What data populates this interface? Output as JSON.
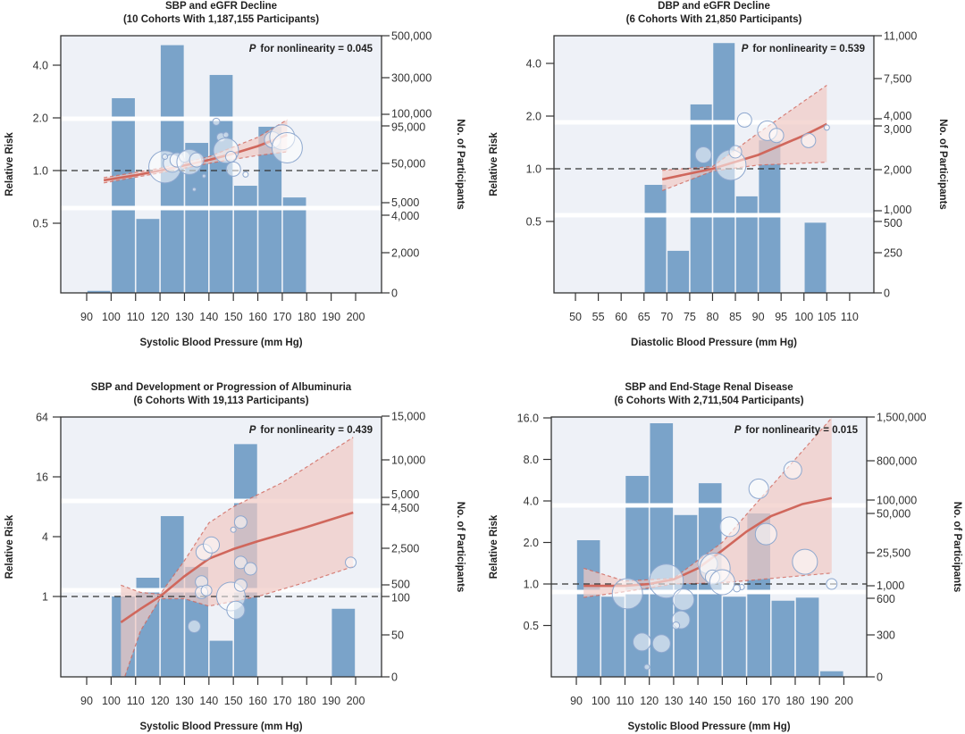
{
  "chart_data": [
    {
      "type": "bar+line+scatter",
      "title": "SBP and eGFR Decline",
      "subtitle": "(10 Cohorts With 1,187,155 Participants)",
      "p_label": "P",
      "p_text": "for nonlinearity = 0.045",
      "xlabel": "Systolic Blood Pressure (mm Hg)",
      "ylabel": "Relative Risk",
      "y2label": "No. of Participants",
      "x_ticks": [
        90,
        100,
        110,
        120,
        130,
        140,
        150,
        160,
        170,
        180,
        190,
        200
      ],
      "y_ticks": [
        {
          "v": 4.0,
          "label": "4.0"
        },
        {
          "v": 2.0,
          "label": "2.0"
        },
        {
          "v": 1.0,
          "label": "1.0"
        },
        {
          "v": 0.5,
          "label": "0.5"
        }
      ],
      "y_scale": "log",
      "y2_ticks": [
        {
          "v": 500000,
          "label": "500,000"
        },
        {
          "v": 300000,
          "label": "300,000"
        },
        {
          "v": 100000,
          "label": "100,000"
        },
        {
          "v": 95000,
          "label": "95,000"
        },
        {
          "v": 50000,
          "label": "50,000"
        },
        {
          "v": 5000,
          "label": "5,000"
        },
        {
          "v": 4000,
          "label": "4,000"
        },
        {
          "v": 2000,
          "label": "2,000"
        },
        {
          "v": 0,
          "label": "0"
        }
      ],
      "bars": [
        {
          "x0": 90,
          "x1": 100,
          "n": 100
        },
        {
          "x0": 100,
          "x1": 110,
          "n": 188000
        },
        {
          "x0": 110,
          "x1": 120,
          "n": 3800
        },
        {
          "x0": 120,
          "x1": 130,
          "n": 455000
        },
        {
          "x0": 130,
          "x1": 140,
          "n": 74600
        },
        {
          "x0": 140,
          "x1": 150,
          "n": 313000
        },
        {
          "x0": 150,
          "x1": 160,
          "n": 24400
        },
        {
          "x0": 160,
          "x1": 170,
          "n": 94000
        },
        {
          "x0": 170,
          "x1": 180,
          "n": 11000
        }
      ],
      "curve": [
        [
          97,
          0.88
        ],
        [
          110,
          0.94
        ],
        [
          120,
          1.0
        ],
        [
          130,
          1.07
        ],
        [
          140,
          1.15
        ],
        [
          150,
          1.25
        ],
        [
          160,
          1.38
        ],
        [
          172,
          1.6
        ]
      ],
      "ci_upper": [
        [
          97,
          0.91
        ],
        [
          120,
          1.03
        ],
        [
          140,
          1.2
        ],
        [
          160,
          1.55
        ],
        [
          172,
          1.95
        ]
      ],
      "ci_lower": [
        [
          97,
          0.85
        ],
        [
          120,
          0.97
        ],
        [
          140,
          1.1
        ],
        [
          160,
          1.22
        ],
        [
          172,
          1.28
        ]
      ],
      "cohort_points": [
        [
          122,
          1.05,
          18
        ],
        [
          125,
          1.1,
          10
        ],
        [
          127,
          1.15,
          8
        ],
        [
          130,
          1.2,
          6
        ],
        [
          132,
          1.12,
          14
        ],
        [
          135,
          1.15,
          8
        ],
        [
          138,
          0.93,
          2
        ],
        [
          134,
          0.78,
          2
        ],
        [
          143,
          1.9,
          4
        ],
        [
          145,
          1.55,
          5
        ],
        [
          147,
          1.3,
          14
        ],
        [
          149,
          1.2,
          6
        ],
        [
          150,
          1.02,
          8
        ],
        [
          155,
          0.95,
          3
        ],
        [
          166,
          1.5,
          9
        ],
        [
          170,
          1.55,
          14
        ],
        [
          172,
          1.35,
          17
        ],
        [
          147,
          1.6,
          3
        ],
        [
          122,
          1.2,
          3
        ]
      ]
    },
    {
      "type": "bar+line+scatter",
      "title": "DBP and eGFR Decline",
      "subtitle": "(6 Cohorts With 21,850 Participants)",
      "p_label": "P",
      "p_text": "for nonlinearity = 0.539",
      "xlabel": "Diastolic Blood Pressure (mm Hg)",
      "ylabel": "Relative Risk",
      "y2label": "No. of Participants",
      "x_ticks": [
        50,
        55,
        60,
        65,
        70,
        75,
        80,
        85,
        90,
        95,
        100,
        105,
        110
      ],
      "y_ticks": [
        {
          "v": 4.0,
          "label": "4.0"
        },
        {
          "v": 2.0,
          "label": "2.0"
        },
        {
          "v": 1.0,
          "label": "1.0"
        },
        {
          "v": 0.5,
          "label": "0.5"
        }
      ],
      "y_scale": "log",
      "y2_ticks": [
        {
          "v": 11000,
          "label": "11,000"
        },
        {
          "v": 7500,
          "label": "7,500"
        },
        {
          "v": 4000,
          "label": "4,000"
        },
        {
          "v": 3000,
          "label": "3,000"
        },
        {
          "v": 2000,
          "label": "2,000"
        },
        {
          "v": 1000,
          "label": "1,000"
        },
        {
          "v": 500,
          "label": "500"
        },
        {
          "v": 250,
          "label": "250"
        },
        {
          "v": 0,
          "label": "0"
        }
      ],
      "bars": [
        {
          "x0": 65,
          "x1": 70,
          "n": 1630
        },
        {
          "x0": 70,
          "x1": 75,
          "n": 265
        },
        {
          "x0": 75,
          "x1": 80,
          "n": 5250
        },
        {
          "x0": 80,
          "x1": 85,
          "n": 10400
        },
        {
          "x0": 85,
          "x1": 90,
          "n": 1350
        },
        {
          "x0": 90,
          "x1": 95,
          "n": 2670
        },
        {
          "x0": 100,
          "x1": 105,
          "n": 490
        }
      ],
      "curve": [
        [
          69,
          0.87
        ],
        [
          80,
          1.0
        ],
        [
          90,
          1.2
        ],
        [
          100,
          1.55
        ],
        [
          105,
          1.8
        ]
      ],
      "ci_upper": [
        [
          69,
          0.98
        ],
        [
          80,
          1.03
        ],
        [
          90,
          1.6
        ],
        [
          105,
          3.0
        ]
      ],
      "ci_lower": [
        [
          69,
          0.75
        ],
        [
          80,
          0.97
        ],
        [
          90,
          1.05
        ],
        [
          105,
          1.09
        ]
      ],
      "cohort_points": [
        [
          78,
          1.2,
          9
        ],
        [
          84,
          1.05,
          17
        ],
        [
          85,
          1.25,
          7
        ],
        [
          87,
          1.9,
          8
        ],
        [
          92,
          1.65,
          11
        ],
        [
          94,
          1.55,
          8
        ],
        [
          101,
          1.45,
          8
        ],
        [
          105,
          1.72,
          3
        ]
      ]
    },
    {
      "type": "bar+line+scatter",
      "title": "SBP and Development or Progression of Albuminuria",
      "subtitle": "(6 Cohorts With 19,113 Participants)",
      "p_label": "P",
      "p_text": "for nonlinearity = 0.439",
      "xlabel": "Systolic Blood Pressure (mm Hg)",
      "ylabel": "Relative Risk",
      "y2label": "No. of Participants",
      "x_ticks": [
        90,
        100,
        110,
        120,
        130,
        140,
        150,
        160,
        170,
        180,
        190,
        200
      ],
      "y_ticks": [
        {
          "v": 64,
          "label": "64"
        },
        {
          "v": 16,
          "label": "16"
        },
        {
          "v": 4,
          "label": "4"
        },
        {
          "v": 1,
          "label": "1"
        }
      ],
      "y_scale": "log",
      "y2_ticks": [
        {
          "v": 15000,
          "label": "15,000"
        },
        {
          "v": 10000,
          "label": "10,000"
        },
        {
          "v": 5000,
          "label": "5,000"
        },
        {
          "v": 4500,
          "label": "4,500"
        },
        {
          "v": 2500,
          "label": "2,500"
        },
        {
          "v": 500,
          "label": "500"
        },
        {
          "v": 100,
          "label": "100"
        },
        {
          "v": 50,
          "label": "50"
        },
        {
          "v": 0,
          "label": "0"
        }
      ],
      "bars": [
        {
          "x0": 100,
          "x1": 110,
          "n": 100
        },
        {
          "x0": 110,
          "x1": 120,
          "n": 890
        },
        {
          "x0": 120,
          "x1": 130,
          "n": 3970
        },
        {
          "x0": 130,
          "x1": 140,
          "n": 1480
        },
        {
          "x0": 140,
          "x1": 150,
          "n": 43
        },
        {
          "x0": 150,
          "x1": 160,
          "n": 11800
        },
        {
          "x0": 190,
          "x1": 200,
          "n": 84
        }
      ],
      "curve": [
        [
          104,
          0.55
        ],
        [
          112,
          0.75
        ],
        [
          120,
          1.0
        ],
        [
          130,
          1.6
        ],
        [
          140,
          2.4
        ],
        [
          150,
          3.0
        ],
        [
          160,
          3.6
        ],
        [
          180,
          5.0
        ],
        [
          199,
          7.0
        ]
      ],
      "ci_upper": [
        [
          104,
          1.3
        ],
        [
          112,
          1.1
        ],
        [
          120,
          1.05
        ],
        [
          130,
          2.3
        ],
        [
          140,
          5.5
        ],
        [
          150,
          8.0
        ],
        [
          170,
          14
        ],
        [
          199,
          40
        ]
      ],
      "ci_lower": [
        [
          104,
          0.12
        ],
        [
          112,
          0.45
        ],
        [
          120,
          0.95
        ],
        [
          130,
          0.95
        ],
        [
          140,
          0.8
        ],
        [
          160,
          1.0
        ],
        [
          180,
          1.4
        ],
        [
          199,
          2.0
        ]
      ],
      "cohort_points": [
        [
          134,
          0.5,
          7
        ],
        [
          137,
          1.4,
          7
        ],
        [
          138,
          2.8,
          9
        ],
        [
          141,
          3.3,
          9
        ],
        [
          137,
          1.1,
          7
        ],
        [
          139,
          1.15,
          6
        ],
        [
          149,
          1.0,
          16
        ],
        [
          151,
          0.73,
          10
        ],
        [
          153,
          5.6,
          7
        ],
        [
          153,
          2.2,
          7
        ],
        [
          153,
          1.3,
          7
        ],
        [
          157,
          1.9,
          7
        ],
        [
          150,
          4.7,
          3
        ],
        [
          198,
          2.2,
          6
        ]
      ]
    },
    {
      "type": "bar+line+scatter",
      "title": "SBP and End-Stage Renal Disease",
      "subtitle": "(6 Cohorts With 2,711,504 Participants)",
      "p_label": "P",
      "p_text": "for nonlinearity = 0.015",
      "xlabel": "Systolic Blood Pressure (mm Hg)",
      "ylabel": "Relative Risk",
      "y2label": "No. of Participants",
      "x_ticks": [
        90,
        100,
        110,
        120,
        130,
        140,
        150,
        160,
        170,
        180,
        190,
        200
      ],
      "y_ticks": [
        {
          "v": 16,
          "label": "16.0"
        },
        {
          "v": 8,
          "label": "8.0"
        },
        {
          "v": 4,
          "label": "4.0"
        },
        {
          "v": 2,
          "label": "2.0"
        },
        {
          "v": 1,
          "label": "1.0"
        },
        {
          "v": 0.5,
          "label": "0.5"
        }
      ],
      "y_scale": "log",
      "y2_ticks": [
        {
          "v": 1500000,
          "label": "1,500,000"
        },
        {
          "v": 800000,
          "label": "800,000"
        },
        {
          "v": 100000,
          "label": "100,000"
        },
        {
          "v": 50000,
          "label": "50,000"
        },
        {
          "v": 25500,
          "label": "25,500"
        },
        {
          "v": 1000,
          "label": "1,000"
        },
        {
          "v": 600,
          "label": "600"
        },
        {
          "v": 300,
          "label": "300"
        },
        {
          "v": 0,
          "label": "0"
        }
      ],
      "bars": [
        {
          "x0": 90,
          "x1": 100,
          "n": 33300
        },
        {
          "x0": 100,
          "x1": 110,
          "n": 650
        },
        {
          "x0": 110,
          "x1": 120,
          "n": 530000
        },
        {
          "x0": 120,
          "x1": 130,
          "n": 1400000
        },
        {
          "x0": 130,
          "x1": 140,
          "n": 49000
        },
        {
          "x0": 140,
          "x1": 150,
          "n": 400000
        },
        {
          "x0": 150,
          "x1": 160,
          "n": 650
        },
        {
          "x0": 160,
          "x1": 170,
          "n": 50000
        },
        {
          "x0": 170,
          "x1": 180,
          "n": 580
        },
        {
          "x0": 180,
          "x1": 190,
          "n": 620
        },
        {
          "x0": 190,
          "x1": 200,
          "n": 40
        }
      ],
      "curve": [
        [
          93,
          0.97
        ],
        [
          110,
          0.97
        ],
        [
          120,
          1.0
        ],
        [
          130,
          1.08
        ],
        [
          140,
          1.3
        ],
        [
          150,
          1.75
        ],
        [
          160,
          2.4
        ],
        [
          170,
          3.1
        ],
        [
          183,
          3.8
        ],
        [
          195,
          4.2
        ]
      ],
      "ci_upper": [
        [
          93,
          1.3
        ],
        [
          110,
          1.05
        ],
        [
          130,
          1.1
        ],
        [
          150,
          2.0
        ],
        [
          160,
          3.2
        ],
        [
          195,
          16
        ]
      ],
      "ci_lower": [
        [
          93,
          0.8
        ],
        [
          110,
          0.88
        ],
        [
          130,
          1.0
        ],
        [
          150,
          1.02
        ],
        [
          195,
          1.2
        ]
      ],
      "cohort_points": [
        [
          111,
          0.85,
          17
        ],
        [
          117,
          0.38,
          10
        ],
        [
          119,
          0.25,
          3
        ],
        [
          127,
          1.05,
          19
        ],
        [
          125,
          0.37,
          10
        ],
        [
          134,
          0.77,
          12
        ],
        [
          133,
          0.55,
          10
        ],
        [
          131,
          0.5,
          4
        ],
        [
          144,
          1.4,
          11
        ],
        [
          147,
          1.3,
          17
        ],
        [
          146,
          1.12,
          8
        ],
        [
          150,
          1.03,
          14
        ],
        [
          153,
          2.6,
          11
        ],
        [
          158,
          0.95,
          3
        ],
        [
          156,
          0.93,
          4
        ],
        [
          165,
          4.9,
          11
        ],
        [
          168,
          2.3,
          12
        ],
        [
          179,
          6.7,
          10
        ],
        [
          184,
          1.45,
          14
        ],
        [
          195,
          1.0,
          6
        ]
      ]
    }
  ],
  "colors": {
    "bar": "#7aa3c9",
    "curve": "#d0675c",
    "ci_fill": "#f1c9c3",
    "background": "#eef1f7",
    "bubble_stroke": "#8ea8cf"
  }
}
